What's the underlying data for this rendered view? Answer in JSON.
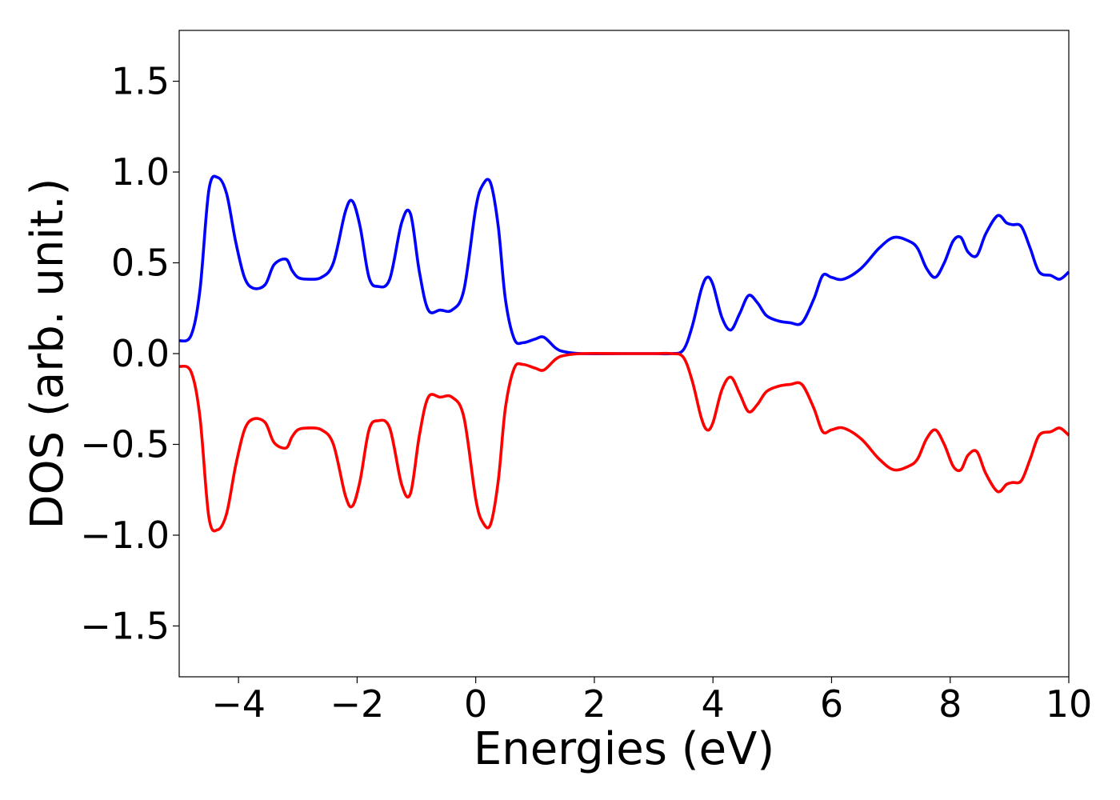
{
  "chart_data": {
    "type": "line",
    "title": "",
    "xlabel": "Energies (eV)",
    "ylabel": "DOS (arb. unit.)",
    "xlim": [
      -5,
      10
    ],
    "ylim": [
      -1.78,
      1.78
    ],
    "grid": false,
    "legend": "none",
    "xticks": [
      -4,
      -2,
      0,
      2,
      4,
      6,
      8,
      10
    ],
    "xtick_labels": [
      "−4",
      "−2",
      "0",
      "2",
      "4",
      "6",
      "8",
      "10"
    ],
    "yticks": [
      -1.5,
      -1.0,
      -0.5,
      0.0,
      0.5,
      1.0,
      1.5
    ],
    "ytick_labels": [
      "−1.5",
      "−1.0",
      "−0.5",
      "0.0",
      "0.5",
      "1.0",
      "1.5"
    ],
    "series": [
      {
        "color": "#0000ff",
        "x": [
          -5.0,
          -4.8,
          -4.65,
          -4.5,
          -4.35,
          -4.2,
          -4.05,
          -3.9,
          -3.75,
          -3.55,
          -3.4,
          -3.2,
          -3.1,
          -3.0,
          -2.85,
          -2.6,
          -2.4,
          -2.2,
          -2.08,
          -1.95,
          -1.8,
          -1.65,
          -1.45,
          -1.25,
          -1.1,
          -0.95,
          -0.8,
          -0.6,
          -0.4,
          -0.2,
          0.0,
          0.12,
          0.25,
          0.38,
          0.5,
          0.65,
          0.8,
          1.0,
          1.15,
          1.35,
          1.5,
          1.8,
          2.5,
          3.0,
          3.3,
          3.5,
          3.65,
          3.8,
          3.9,
          4.0,
          4.15,
          4.3,
          4.45,
          4.6,
          4.75,
          4.9,
          5.1,
          5.3,
          5.5,
          5.7,
          5.85,
          6.0,
          6.2,
          6.5,
          6.8,
          7.05,
          7.3,
          7.45,
          7.6,
          7.75,
          7.9,
          8.05,
          8.18,
          8.3,
          8.45,
          8.6,
          8.8,
          8.95,
          9.05,
          9.2,
          9.35,
          9.5,
          9.7,
          9.85,
          10.0
        ],
        "y": [
          0.07,
          0.1,
          0.35,
          0.9,
          0.97,
          0.88,
          0.62,
          0.42,
          0.36,
          0.38,
          0.49,
          0.52,
          0.46,
          0.42,
          0.41,
          0.42,
          0.5,
          0.78,
          0.84,
          0.7,
          0.42,
          0.37,
          0.41,
          0.72,
          0.77,
          0.45,
          0.24,
          0.24,
          0.24,
          0.35,
          0.8,
          0.93,
          0.94,
          0.7,
          0.3,
          0.08,
          0.06,
          0.08,
          0.09,
          0.03,
          0.01,
          0.0,
          0.0,
          0.0,
          0.0,
          0.02,
          0.15,
          0.35,
          0.42,
          0.38,
          0.2,
          0.13,
          0.22,
          0.32,
          0.28,
          0.21,
          0.18,
          0.17,
          0.17,
          0.3,
          0.43,
          0.42,
          0.41,
          0.47,
          0.58,
          0.64,
          0.62,
          0.58,
          0.47,
          0.42,
          0.5,
          0.62,
          0.64,
          0.56,
          0.54,
          0.66,
          0.76,
          0.72,
          0.71,
          0.7,
          0.58,
          0.45,
          0.43,
          0.41,
          0.45
        ]
      },
      {
        "color": "#ff0000",
        "x": [
          -5.0,
          -4.8,
          -4.65,
          -4.5,
          -4.35,
          -4.2,
          -4.05,
          -3.9,
          -3.75,
          -3.55,
          -3.4,
          -3.2,
          -3.1,
          -3.0,
          -2.85,
          -2.6,
          -2.4,
          -2.2,
          -2.08,
          -1.95,
          -1.8,
          -1.65,
          -1.45,
          -1.25,
          -1.1,
          -0.95,
          -0.8,
          -0.6,
          -0.4,
          -0.2,
          0.0,
          0.12,
          0.25,
          0.38,
          0.5,
          0.65,
          0.8,
          1.0,
          1.15,
          1.35,
          1.5,
          1.8,
          2.5,
          3.0,
          3.3,
          3.5,
          3.65,
          3.8,
          3.9,
          4.0,
          4.15,
          4.3,
          4.45,
          4.6,
          4.75,
          4.9,
          5.1,
          5.3,
          5.5,
          5.7,
          5.85,
          6.0,
          6.2,
          6.5,
          6.8,
          7.05,
          7.3,
          7.45,
          7.6,
          7.75,
          7.9,
          8.05,
          8.18,
          8.3,
          8.45,
          8.6,
          8.8,
          8.95,
          9.05,
          9.2,
          9.35,
          9.5,
          9.7,
          9.85,
          10.0
        ],
        "y": [
          -0.07,
          -0.1,
          -0.35,
          -0.9,
          -0.97,
          -0.88,
          -0.62,
          -0.42,
          -0.36,
          -0.38,
          -0.49,
          -0.52,
          -0.46,
          -0.42,
          -0.41,
          -0.42,
          -0.5,
          -0.78,
          -0.84,
          -0.7,
          -0.42,
          -0.37,
          -0.41,
          -0.72,
          -0.77,
          -0.45,
          -0.24,
          -0.24,
          -0.24,
          -0.35,
          -0.8,
          -0.93,
          -0.94,
          -0.7,
          -0.3,
          -0.08,
          -0.06,
          -0.08,
          -0.09,
          -0.03,
          -0.01,
          0.0,
          0.0,
          0.0,
          0.0,
          -0.02,
          -0.15,
          -0.35,
          -0.42,
          -0.38,
          -0.2,
          -0.13,
          -0.22,
          -0.32,
          -0.28,
          -0.21,
          -0.18,
          -0.17,
          -0.17,
          -0.3,
          -0.43,
          -0.42,
          -0.41,
          -0.47,
          -0.58,
          -0.64,
          -0.62,
          -0.58,
          -0.47,
          -0.42,
          -0.5,
          -0.62,
          -0.64,
          -0.56,
          -0.54,
          -0.66,
          -0.76,
          -0.72,
          -0.71,
          -0.7,
          -0.58,
          -0.45,
          -0.43,
          -0.41,
          -0.45
        ]
      }
    ]
  }
}
